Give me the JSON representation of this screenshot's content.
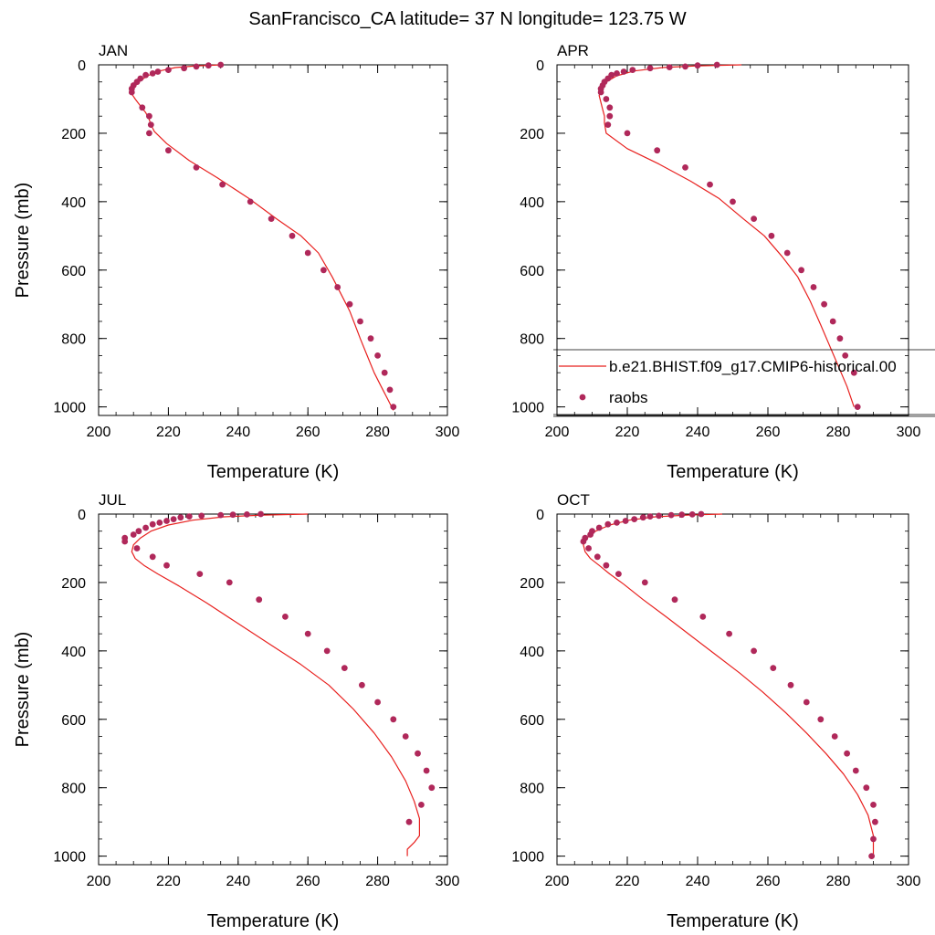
{
  "figure": {
    "title": "SanFrancisco_CA  latitude= 37 N longitude= 123.75 W"
  },
  "colors": {
    "model_line": "#e8201e",
    "obs_marker": "#b0285a",
    "axis": "#000000"
  },
  "legend": {
    "model_label": "b.e21.BHIST.f09_g17.CMIP6-historical.00",
    "obs_label": "raobs",
    "panel": "APR",
    "placement": "lower-right"
  },
  "chart_data": [
    {
      "type": "line+scatter",
      "title": "JAN",
      "xlabel": "Temperature (K)",
      "ylabel": "Pressure (mb)",
      "xlim": [
        200,
        300
      ],
      "ylim": [
        1025,
        0
      ],
      "xticks": [
        "200",
        "220",
        "240",
        "260",
        "280",
        "300"
      ],
      "yticks": [
        "0",
        "200",
        "400",
        "600",
        "800",
        "1000"
      ],
      "series": [
        {
          "name": "b.e21.BHIST.f09_g17.CMIP6-historical.00",
          "kind": "line",
          "x": [
            235.5,
            228,
            222,
            217.5,
            214,
            211.5,
            210,
            209.5,
            210.5,
            212,
            213.5,
            214.5,
            215,
            216,
            219.5,
            226,
            234,
            243,
            251,
            258,
            263,
            267,
            270,
            272,
            273.5,
            275,
            277,
            279,
            281,
            283,
            284.5
          ],
          "y": [
            0,
            3,
            8,
            18,
            32,
            50,
            68,
            85,
            100,
            120,
            140,
            160,
            175,
            195,
            230,
            280,
            330,
            390,
            450,
            500,
            550,
            620,
            680,
            720,
            760,
            800,
            850,
            900,
            940,
            980,
            1010
          ]
        },
        {
          "name": "raobs",
          "kind": "scatter",
          "x": [
            235,
            231.5,
            228,
            224.5,
            220,
            217,
            215.5,
            213.5,
            212,
            211,
            210,
            209.5,
            209.5,
            212.5,
            214.5,
            215,
            214.5,
            220,
            228,
            235.5,
            243.5,
            249.5,
            255.5,
            260,
            264.5,
            268.5,
            272,
            275,
            278,
            280,
            282,
            283.5,
            284.5
          ],
          "y": [
            0,
            2,
            5,
            10,
            15,
            20,
            25,
            30,
            40,
            50,
            60,
            70,
            80,
            125,
            150,
            175,
            200,
            250,
            300,
            350,
            400,
            450,
            500,
            550,
            600,
            650,
            700,
            750,
            800,
            850,
            900,
            950,
            1000
          ]
        }
      ]
    },
    {
      "type": "line+scatter",
      "title": "APR",
      "xlabel": "Temperature (K)",
      "ylabel": "",
      "xlim": [
        200,
        300
      ],
      "ylim": [
        1025,
        0
      ],
      "xticks": [
        "200",
        "220",
        "240",
        "260",
        "280",
        "300"
      ],
      "yticks": [
        "0",
        "200",
        "400",
        "600",
        "800",
        "1000"
      ],
      "series": [
        {
          "name": "b.e21.BHIST.f09_g17.CMIP6-historical.00",
          "kind": "line",
          "x": [
            252.5,
            240,
            230,
            222,
            217,
            214,
            212.5,
            212,
            212.5,
            213,
            213.5,
            213.5,
            214,
            220,
            229,
            238,
            246,
            253,
            259,
            264,
            268.5,
            272,
            275,
            277.5,
            280,
            282.5,
            284.5
          ],
          "y": [
            0,
            3,
            8,
            18,
            32,
            50,
            70,
            90,
            110,
            130,
            150,
            170,
            200,
            245,
            290,
            340,
            390,
            450,
            500,
            560,
            620,
            690,
            760,
            820,
            880,
            940,
            1000
          ]
        },
        {
          "name": "raobs",
          "kind": "scatter",
          "x": [
            245.5,
            240,
            236.5,
            232,
            226.5,
            221.5,
            219,
            217,
            215.5,
            214.5,
            213.5,
            213,
            212.5,
            212.5,
            214,
            215,
            215,
            214.5,
            220,
            228.5,
            236.5,
            243.5,
            250,
            256,
            261,
            265.5,
            269.5,
            273,
            276,
            278.5,
            280.5,
            282,
            284.5,
            285.5
          ],
          "y": [
            0,
            2,
            5,
            7,
            10,
            15,
            20,
            25,
            30,
            40,
            50,
            60,
            70,
            80,
            100,
            125,
            150,
            175,
            200,
            250,
            300,
            350,
            400,
            450,
            500,
            550,
            600,
            650,
            700,
            750,
            800,
            850,
            900,
            1000
          ]
        }
      ]
    },
    {
      "type": "line+scatter",
      "title": "JUL",
      "xlabel": "Temperature (K)",
      "ylabel": "Pressure (mb)",
      "xlim": [
        200,
        300
      ],
      "ylim": [
        1025,
        0
      ],
      "xticks": [
        "200",
        "220",
        "240",
        "260",
        "280",
        "300"
      ],
      "yticks": [
        "0",
        "200",
        "400",
        "600",
        "800",
        "1000"
      ],
      "series": [
        {
          "name": "b.e21.BHIST.f09_g17.CMIP6-historical.00",
          "kind": "line",
          "x": [
            260,
            247,
            236,
            227,
            220,
            215,
            212,
            210,
            209.5,
            210.5,
            213,
            217,
            223,
            231,
            240,
            249,
            258,
            266,
            273,
            279,
            284,
            288,
            290.5,
            292,
            292,
            290.5,
            288.5,
            288.5
          ],
          "y": [
            0,
            3,
            8,
            18,
            32,
            50,
            70,
            90,
            110,
            130,
            150,
            175,
            210,
            260,
            320,
            380,
            440,
            500,
            570,
            640,
            710,
            780,
            840,
            890,
            940,
            960,
            980,
            1000
          ]
        },
        {
          "name": "raobs",
          "kind": "scatter",
          "x": [
            246.5,
            242.5,
            238.5,
            235,
            229.5,
            226,
            223.5,
            221.5,
            219.5,
            217.5,
            215.5,
            213.5,
            211.5,
            210,
            207.5,
            207.5,
            211,
            215.5,
            219.5,
            229,
            237.5,
            246,
            253.5,
            260,
            265.5,
            270.5,
            275.5,
            280,
            284.5,
            288,
            291.5,
            294,
            295.5,
            292.5,
            289
          ],
          "y": [
            0,
            1,
            2,
            3,
            5,
            7,
            10,
            15,
            20,
            25,
            30,
            40,
            50,
            60,
            70,
            80,
            100,
            125,
            150,
            175,
            200,
            250,
            300,
            350,
            400,
            450,
            500,
            550,
            600,
            650,
            700,
            750,
            800,
            850,
            900
          ]
        }
      ]
    },
    {
      "type": "line+scatter",
      "title": "OCT",
      "xlabel": "Temperature (K)",
      "ylabel": "",
      "xlim": [
        200,
        300
      ],
      "ylim": [
        1025,
        0
      ],
      "xticks": [
        "200",
        "220",
        "240",
        "260",
        "280",
        "300"
      ],
      "yticks": [
        "0",
        "200",
        "400",
        "600",
        "800",
        "1000"
      ],
      "series": [
        {
          "name": "b.e21.BHIST.f09_g17.CMIP6-historical.00",
          "kind": "line",
          "x": [
            247,
            237,
            228,
            220.5,
            215,
            211,
            208.5,
            207.5,
            208,
            209.5,
            212,
            215,
            219,
            224.5,
            231,
            238,
            245,
            252,
            258.5,
            265,
            271,
            276.5,
            281.5,
            285.5,
            288.5,
            290,
            290
          ],
          "y": [
            0,
            3,
            8,
            18,
            32,
            50,
            70,
            90,
            110,
            130,
            150,
            175,
            205,
            250,
            300,
            355,
            410,
            465,
            520,
            580,
            640,
            700,
            760,
            820,
            880,
            940,
            1000
          ]
        },
        {
          "name": "raobs",
          "kind": "scatter",
          "x": [
            241,
            238.5,
            235.5,
            232.5,
            229,
            226.5,
            224.5,
            222,
            219.5,
            217,
            214.5,
            212,
            210,
            209.5,
            208,
            207.5,
            209,
            211.5,
            214,
            217.5,
            225,
            233.5,
            241.5,
            249,
            256,
            261.5,
            266.5,
            271,
            275,
            279,
            282.5,
            285,
            288,
            290,
            290.5,
            290,
            289.5
          ],
          "y": [
            0,
            1,
            2,
            3,
            5,
            7,
            10,
            15,
            20,
            25,
            30,
            40,
            50,
            60,
            70,
            80,
            100,
            125,
            150,
            175,
            200,
            250,
            300,
            350,
            400,
            450,
            500,
            550,
            600,
            650,
            700,
            750,
            800,
            850,
            900,
            950,
            1000
          ]
        }
      ]
    }
  ]
}
